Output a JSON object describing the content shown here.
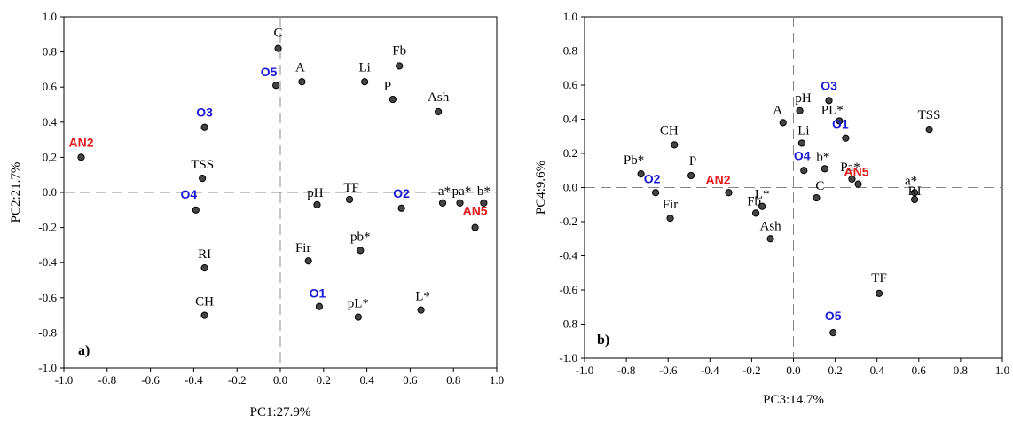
{
  "colors": {
    "black": "#000000",
    "blue": "#1a1ad6",
    "red": "#e31a1c"
  },
  "chart_data": [
    {
      "type": "scatter",
      "panel_label": "a)",
      "xlabel": "PC1:27.9%",
      "ylabel": "PC2:21.7%",
      "xlim": [
        -1.0,
        1.0
      ],
      "ylim": [
        -1.0,
        1.0
      ],
      "xticks": [
        "-1.0",
        "-0.8",
        "-0.6",
        "-0.4",
        "-0.2",
        "0.0",
        "0.2",
        "0.4",
        "0.6",
        "0.8",
        "1.0"
      ],
      "yticks": [
        "1.0",
        "0.8",
        "0.6",
        "0.4",
        "0.2",
        "0.0",
        "-0.2",
        "-0.4",
        "-0.6",
        "-0.8",
        "-1.0"
      ],
      "points": [
        {
          "label": "C",
          "x": -0.01,
          "y": 0.82,
          "color": "black",
          "bold": false
        },
        {
          "label": "A",
          "x": 0.1,
          "y": 0.63,
          "color": "black",
          "bold": false
        },
        {
          "label": "O5",
          "x": -0.02,
          "y": 0.61,
          "color": "blue",
          "bold": true
        },
        {
          "label": "Li",
          "x": 0.39,
          "y": 0.63,
          "color": "black",
          "bold": false
        },
        {
          "label": "Fb",
          "x": 0.55,
          "y": 0.72,
          "color": "black",
          "bold": false
        },
        {
          "label": "P",
          "x": 0.52,
          "y": 0.53,
          "color": "black",
          "bold": false
        },
        {
          "label": "Ash",
          "x": 0.73,
          "y": 0.46,
          "color": "black",
          "bold": false
        },
        {
          "label": "O3",
          "x": -0.35,
          "y": 0.37,
          "color": "blue",
          "bold": true
        },
        {
          "label": "AN2",
          "x": -0.92,
          "y": 0.2,
          "color": "red",
          "bold": true
        },
        {
          "label": "TSS",
          "x": -0.36,
          "y": 0.08,
          "color": "black",
          "bold": false
        },
        {
          "label": "O4",
          "x": -0.39,
          "y": -0.1,
          "color": "blue",
          "bold": true
        },
        {
          "label": "pH",
          "x": 0.17,
          "y": -0.07,
          "color": "black",
          "bold": false
        },
        {
          "label": "TF",
          "x": 0.32,
          "y": -0.04,
          "color": "black",
          "bold": false
        },
        {
          "label": "O2",
          "x": 0.56,
          "y": -0.09,
          "color": "blue",
          "bold": true
        },
        {
          "label": "a*",
          "x": 0.75,
          "y": -0.06,
          "color": "black",
          "bold": false
        },
        {
          "label": "pa*",
          "x": 0.83,
          "y": -0.06,
          "color": "black",
          "bold": false
        },
        {
          "label": "b*",
          "x": 0.94,
          "y": -0.06,
          "color": "black",
          "bold": false
        },
        {
          "label": "AN5",
          "x": 0.9,
          "y": -0.2,
          "color": "red",
          "bold": true
        },
        {
          "label": "pb*",
          "x": 0.37,
          "y": -0.33,
          "color": "black",
          "bold": false
        },
        {
          "label": "Fir",
          "x": 0.13,
          "y": -0.39,
          "color": "black",
          "bold": false
        },
        {
          "label": "RI",
          "x": -0.35,
          "y": -0.43,
          "color": "black",
          "bold": false
        },
        {
          "label": "O1",
          "x": 0.18,
          "y": -0.65,
          "color": "blue",
          "bold": true
        },
        {
          "label": "pL*",
          "x": 0.36,
          "y": -0.71,
          "color": "black",
          "bold": false
        },
        {
          "label": "L*",
          "x": 0.65,
          "y": -0.67,
          "color": "black",
          "bold": false
        },
        {
          "label": "CH",
          "x": -0.35,
          "y": -0.7,
          "color": "black",
          "bold": false
        }
      ]
    },
    {
      "type": "scatter",
      "panel_label": "b)",
      "xlabel": "PC3:14.7%",
      "ylabel": "PC4:9.6%",
      "xlim": [
        -1.0,
        1.0
      ],
      "ylim": [
        -1.0,
        1.0
      ],
      "xticks": [
        "-1.0",
        "-0.8",
        "-0.6",
        "-0.4",
        "-0.2",
        "0.0",
        "0.2",
        "0.4",
        "0.6",
        "0.8",
        "1.0"
      ],
      "yticks": [
        "1.0",
        "0.8",
        "0.6",
        "0.4",
        "0.2",
        "0.0",
        "-0.2",
        "-0.4",
        "-0.6",
        "-0.8",
        "-1.0"
      ],
      "points": [
        {
          "label": "O3",
          "x": 0.17,
          "y": 0.51,
          "color": "blue",
          "bold": true
        },
        {
          "label": "pH",
          "x": 0.03,
          "y": 0.45,
          "color": "black",
          "bold": false
        },
        {
          "label": "PL*",
          "x": 0.22,
          "y": 0.39,
          "color": "black",
          "bold": false
        },
        {
          "label": "A",
          "x": -0.05,
          "y": 0.38,
          "color": "black",
          "bold": false
        },
        {
          "label": "O1",
          "x": 0.25,
          "y": 0.29,
          "color": "blue",
          "bold": true
        },
        {
          "label": "TSS",
          "x": 0.65,
          "y": 0.34,
          "color": "black",
          "bold": false
        },
        {
          "label": "Li",
          "x": 0.04,
          "y": 0.26,
          "color": "black",
          "bold": false
        },
        {
          "label": "CH",
          "x": -0.57,
          "y": 0.25,
          "color": "black",
          "bold": false
        },
        {
          "label": "O4",
          "x": 0.05,
          "y": 0.1,
          "color": "blue",
          "bold": true
        },
        {
          "label": "b*",
          "x": 0.15,
          "y": 0.11,
          "color": "black",
          "bold": false
        },
        {
          "label": "Pb*",
          "x": -0.73,
          "y": 0.08,
          "color": "black",
          "bold": false
        },
        {
          "label": "P",
          "x": -0.49,
          "y": 0.07,
          "color": "black",
          "bold": false
        },
        {
          "label": "Pa*",
          "x": 0.28,
          "y": 0.05,
          "color": "black",
          "bold": false
        },
        {
          "label": "AN5",
          "x": 0.31,
          "y": 0.02,
          "color": "red",
          "bold": true
        },
        {
          "label": "a*",
          "x": 0.58,
          "y": -0.03,
          "color": "black",
          "bold": false
        },
        {
          "label": "RI",
          "x": 0.58,
          "y": -0.07,
          "color": "black",
          "bold": false
        },
        {
          "label": "O2",
          "x": -0.66,
          "y": -0.03,
          "color": "blue",
          "bold": true
        },
        {
          "label": "AN2",
          "x": -0.31,
          "y": -0.03,
          "color": "red",
          "bold": true
        },
        {
          "label": "L*",
          "x": -0.15,
          "y": -0.11,
          "color": "black",
          "bold": false
        },
        {
          "label": "Fb",
          "x": -0.18,
          "y": -0.15,
          "color": "black",
          "bold": false
        },
        {
          "label": "C",
          "x": 0.11,
          "y": -0.06,
          "color": "black",
          "bold": false
        },
        {
          "label": "Fir",
          "x": -0.59,
          "y": -0.18,
          "color": "black",
          "bold": false
        },
        {
          "label": "Ash",
          "x": -0.11,
          "y": -0.3,
          "color": "black",
          "bold": false
        },
        {
          "label": "TF",
          "x": 0.41,
          "y": -0.62,
          "color": "black",
          "bold": false
        },
        {
          "label": "O5",
          "x": 0.19,
          "y": -0.85,
          "color": "blue",
          "bold": true
        }
      ]
    }
  ]
}
